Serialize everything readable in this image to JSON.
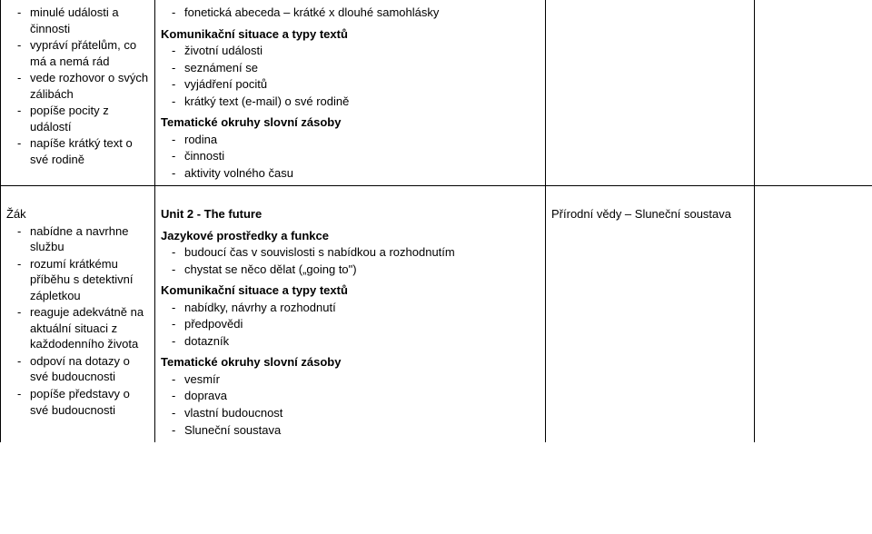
{
  "row1": {
    "col1": {
      "items": [
        "minulé události a činnosti",
        "vypráví přátelům, co má a nemá rád",
        "vede rozhovor o svých  zálibách",
        "popíše pocity z událostí",
        "napíše krátký text o své rodině"
      ]
    },
    "col2": {
      "topList": [
        "fonetická abeceda – krátké x dlouhé samohlásky"
      ],
      "heading1": "Komunikační situace a typy textů",
      "list1": [
        "životní události",
        "seznámení se",
        "vyjádření pocitů",
        "krátký text (e-mail) o své rodině"
      ],
      "heading2": "Tematické okruhy slovní zásoby",
      "list2": [
        "rodina",
        "činnosti",
        "aktivity volného času"
      ]
    }
  },
  "row2": {
    "col1": {
      "zak": "Žák",
      "items": [
        "nabídne a navrhne službu",
        "rozumí krátkému příběhu s detektivní zápletkou",
        "reaguje adekvátně na aktuální situaci z každodenního života",
        "odpoví na dotazy o své budoucnosti",
        "popíše představy o své budoucnosti"
      ]
    },
    "col2": {
      "unit": "Unit 2  -  The future",
      "heading1": "Jazykové prostředky a funkce",
      "list1": [
        "budoucí čas v souvislosti s nabídkou a rozhodnutím",
        "chystat se něco dělat („going to\")"
      ],
      "heading2": "Komunikační situace a typy textů",
      "list2": [
        "nabídky, návrhy a rozhodnutí",
        "předpovědi",
        "dotazník"
      ],
      "heading3": "Tematické okruhy slovní zásoby",
      "list3": [
        "vesmír",
        "doprava",
        "vlastní budoucnost",
        "Sluneční soustava"
      ]
    },
    "col3": "Přírodní vědy – Sluneční soustava"
  }
}
